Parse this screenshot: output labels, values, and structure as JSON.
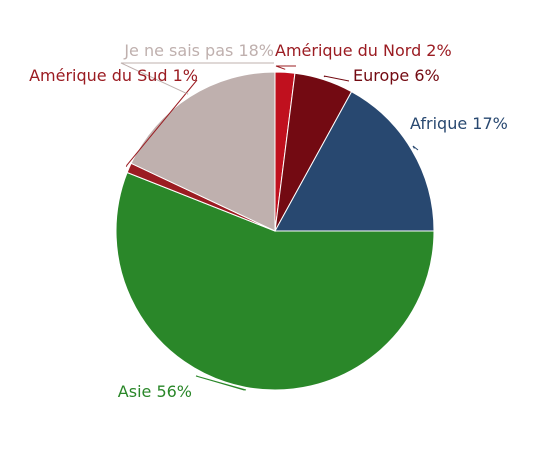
{
  "chart_data": {
    "type": "pie",
    "start_angle_deg": 0,
    "direction": "clockwise",
    "slice_border_color": "#ffffff",
    "series": [
      {
        "name": "",
        "slices": [
          {
            "key": "amerique-du-nord",
            "label": "Amérique du Nord",
            "value": 2,
            "text": "Amérique du Nord 2%",
            "color": "#c0101e",
            "label_color": "#9b1c22"
          },
          {
            "key": "europe",
            "label": "Europe",
            "value": 6,
            "text": "Europe 6%",
            "color": "#730a12",
            "label_color": "#730a12"
          },
          {
            "key": "afrique",
            "label": "Afrique",
            "value": 17,
            "text": "Afrique 17%",
            "color": "#284870",
            "label_color": "#284870"
          },
          {
            "key": "asie",
            "label": "Asie",
            "value": 56,
            "text": "Asie 56%",
            "color": "#2a8729",
            "label_color": "#2a8729"
          },
          {
            "key": "amerique-du-sud",
            "label": "Amérique du Sud",
            "value": 1,
            "text": "Amérique du Sud 1%",
            "color": "#9b1c22",
            "label_color": "#9b1c22"
          },
          {
            "key": "je-ne-sais-pas",
            "label": "Je ne sais pas",
            "value": 18,
            "text": "Je ne sais pas 18%",
            "color": "#bfb0ae",
            "label_color": "#bfb0ae"
          }
        ]
      }
    ]
  }
}
